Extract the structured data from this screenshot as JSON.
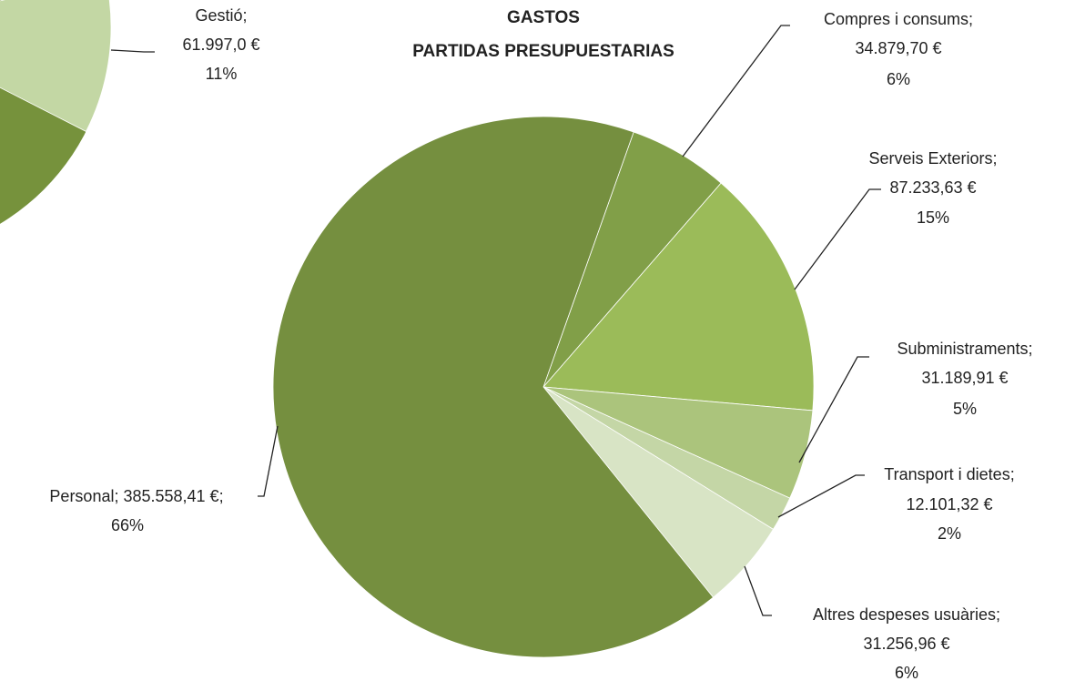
{
  "chart_data": [
    {
      "type": "pie",
      "title": [
        "GASTOS",
        "PARTIDAS PRESUPUESTARIAS"
      ],
      "categories": [
        "Compres i consums;",
        "Serveis Exteriors;",
        "Subministraments;",
        "Transport i dietes;",
        "Altres despeses usuàries;",
        "Personal;"
      ],
      "values": [
        34879.7,
        87233.63,
        31189.91,
        12101.32,
        31256.96,
        385558.41
      ],
      "value_labels": [
        "34.879,70 €",
        "87.233,63 €",
        "31.189,91 €",
        "12.101,32 €",
        "31.256,96 €",
        "385.558,41 €;"
      ],
      "percent_labels": [
        "6%",
        "15%",
        "5%",
        "2%",
        "6%",
        "66%"
      ],
      "colors": [
        "#819f48",
        "#9bbb59",
        "#abc47c",
        "#c4d6a6",
        "#d8e4c5",
        "#758f3f"
      ]
    },
    {
      "type": "pie-fragment",
      "categories": [
        "Gestió;"
      ],
      "values": [
        61997.0
      ],
      "value_labels": [
        "61.997,0 €"
      ],
      "percent_labels": [
        "11%"
      ],
      "colors": [
        "#c3d7a4"
      ]
    }
  ]
}
